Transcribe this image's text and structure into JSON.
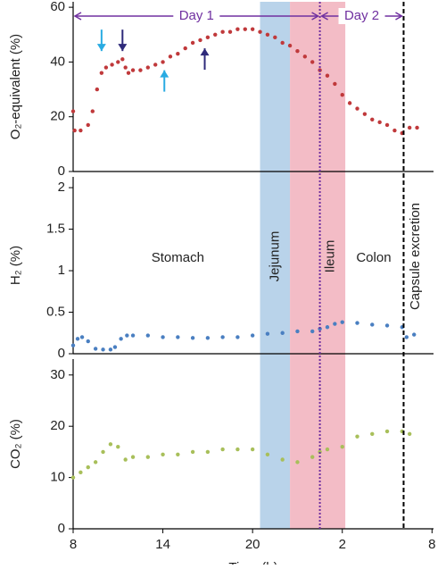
{
  "chart_data": [
    {
      "type": "scatter",
      "ylabel": "O₂-equivalent (%)",
      "xlim": [
        8,
        32.1
      ],
      "ylim": [
        0,
        62
      ],
      "yticks": [
        0,
        20,
        40,
        60
      ],
      "series": [
        {
          "color": "#c0393b",
          "x": [
            8.0,
            8.1,
            8.5,
            9.0,
            9.3,
            9.6,
            9.9,
            10.2,
            10.6,
            11.0,
            11.3,
            11.5,
            11.7,
            12.0,
            12.5,
            13.0,
            13.5,
            14.0,
            14.5,
            15.0,
            15.5,
            16.0,
            16.5,
            17.0,
            17.5,
            18.0,
            18.5,
            19.0,
            19.5,
            20.0,
            20.5,
            21.0,
            21.5,
            22.0,
            22.5,
            23.0,
            23.5,
            24.0,
            24.5,
            25.0,
            25.5,
            26.0,
            26.5,
            27.0,
            27.5,
            28.0,
            28.5,
            29.0,
            29.5,
            30.0,
            30.5,
            31.0
          ],
          "values": [
            22,
            15,
            15,
            17,
            22,
            30,
            36,
            38,
            39,
            40,
            41,
            38,
            36,
            37,
            37,
            38,
            39,
            40,
            42,
            43,
            45,
            47,
            48,
            49,
            50,
            51,
            51,
            52,
            52,
            52,
            51,
            50,
            49,
            47,
            46,
            44,
            42,
            40,
            37,
            35,
            32,
            28,
            25,
            23,
            21,
            19,
            18,
            17,
            15,
            14,
            16,
            16
          ]
        }
      ],
      "bands": [
        {
          "x": [
            20.5,
            22.5
          ],
          "color": "#b9d3ea"
        },
        {
          "x": [
            22.5,
            26.2
          ],
          "color": "#f3bcc6"
        }
      ],
      "vlines": [
        {
          "x": 24.5,
          "color": "#7030a0",
          "dash": "2 2"
        },
        {
          "x": 30.1,
          "color": "#000000",
          "dash": "5 3"
        }
      ],
      "days": [
        {
          "label": "Day 1",
          "x": [
            8,
            24.5
          ]
        },
        {
          "label": "Day 2",
          "x": [
            24.5,
            30.1
          ]
        }
      ],
      "arrows": [
        {
          "x": 9.9,
          "y": 44,
          "color": "#29abe2",
          "direction": "down"
        },
        {
          "x": 11.3,
          "y": 44,
          "color": "#2e2a7a",
          "direction": "down"
        },
        {
          "x": 14.1,
          "y": 37,
          "color": "#29abe2",
          "direction": "up"
        },
        {
          "x": 16.8,
          "y": 45,
          "color": "#2e2a7a",
          "direction": "up"
        }
      ]
    },
    {
      "type": "scatter",
      "ylabel": "H₂ (%)",
      "xlim": [
        8,
        32.1
      ],
      "ylim": [
        0,
        2.13
      ],
      "yticks": [
        0,
        0.5,
        1,
        1.5,
        2
      ],
      "series": [
        {
          "color": "#4a7fc1",
          "x": [
            8.0,
            8.3,
            8.6,
            9.0,
            9.5,
            10.0,
            10.5,
            10.8,
            11.2,
            11.6,
            12,
            13,
            14,
            15,
            16,
            17,
            18,
            19,
            20,
            21,
            22,
            23,
            24,
            24.5,
            25,
            25.5,
            26,
            27,
            28,
            29,
            30,
            30.3,
            30.8
          ],
          "values": [
            0.1,
            0.18,
            0.2,
            0.15,
            0.06,
            0.05,
            0.05,
            0.08,
            0.18,
            0.22,
            0.22,
            0.22,
            0.2,
            0.2,
            0.19,
            0.19,
            0.2,
            0.2,
            0.22,
            0.24,
            0.25,
            0.27,
            0.27,
            0.3,
            0.32,
            0.36,
            0.38,
            0.37,
            0.35,
            0.34,
            0.32,
            0.2,
            0.23
          ]
        }
      ],
      "labels": [
        {
          "text": "Stomach",
          "x": 15.0,
          "rotated": false
        },
        {
          "text": "Jejunum",
          "x": 21.5,
          "rotated": true
        },
        {
          "text": "Ileum",
          "x": 25.2,
          "rotated": true
        },
        {
          "text": "Colon",
          "x": 28.1,
          "rotated": false
        },
        {
          "text": "Capsule excretion",
          "x": 30.9,
          "rotated": true
        }
      ]
    },
    {
      "type": "scatter",
      "ylabel": "CO₂ (%)",
      "xlabel": "Time (h)",
      "xlim": [
        8,
        32.1
      ],
      "ylim": [
        0,
        33.1
      ],
      "yticks": [
        0,
        10,
        20,
        30
      ],
      "xticks": [
        8,
        14,
        20,
        {
          "value": 26,
          "label": "2"
        },
        {
          "value": 32,
          "label": "8"
        }
      ],
      "series": [
        {
          "color": "#a8bf5a",
          "x": [
            8,
            8.5,
            9,
            9.5,
            10,
            10.5,
            11,
            11.5,
            12,
            13,
            14,
            15,
            16,
            17,
            18,
            19,
            20,
            21,
            22,
            23,
            24,
            24.5,
            25,
            26,
            27,
            28,
            29,
            30,
            30.5
          ],
          "values": [
            10,
            11,
            12,
            13,
            15,
            16.5,
            16,
            13.5,
            14,
            14,
            14.5,
            14.5,
            15,
            15,
            15.5,
            15.5,
            15.5,
            14.5,
            13.5,
            13,
            14,
            15,
            15.5,
            16,
            18,
            18.5,
            19,
            19,
            18.5
          ]
        }
      ]
    }
  ]
}
